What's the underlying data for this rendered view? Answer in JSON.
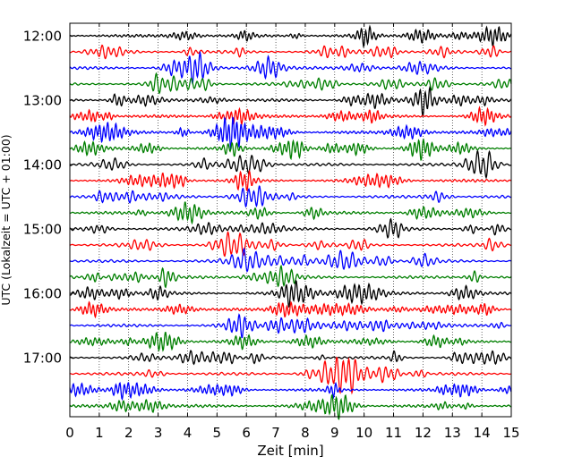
{
  "chart_data": {
    "type": "line",
    "title": "",
    "xlabel": "Zeit  [min]",
    "ylabel": "UTC (Lokalzeit = UTC + 01:00)",
    "xlim": [
      0,
      15
    ],
    "x_ticks": [
      0,
      1,
      2,
      3,
      4,
      5,
      6,
      7,
      8,
      9,
      10,
      11,
      12,
      13,
      14,
      15
    ],
    "x_tick_labels": [
      "0",
      "1",
      "2",
      "3",
      "4",
      "5",
      "6",
      "7",
      "8",
      "9",
      "10",
      "11",
      "12",
      "13",
      "14",
      "15"
    ],
    "y_tick_labels": [
      "12:00",
      "13:00",
      "14:00",
      "15:00",
      "16:00",
      "17:00"
    ],
    "trace_interval_min": 15,
    "traces_per_hour": 4,
    "trace_start_times": [
      "12:00",
      "12:15",
      "12:30",
      "12:45",
      "13:00",
      "13:15",
      "13:30",
      "13:45",
      "14:00",
      "14:15",
      "14:30",
      "14:45",
      "15:00",
      "15:15",
      "15:30",
      "15:45",
      "16:00",
      "16:15",
      "16:30",
      "16:45",
      "17:00",
      "17:15",
      "17:30",
      "17:45"
    ],
    "trace_colors": [
      "#000000",
      "#ff0000",
      "#0000ff",
      "#007f00"
    ],
    "grid": {
      "vertical": true,
      "horizontal": false,
      "style": "dotted"
    }
  }
}
